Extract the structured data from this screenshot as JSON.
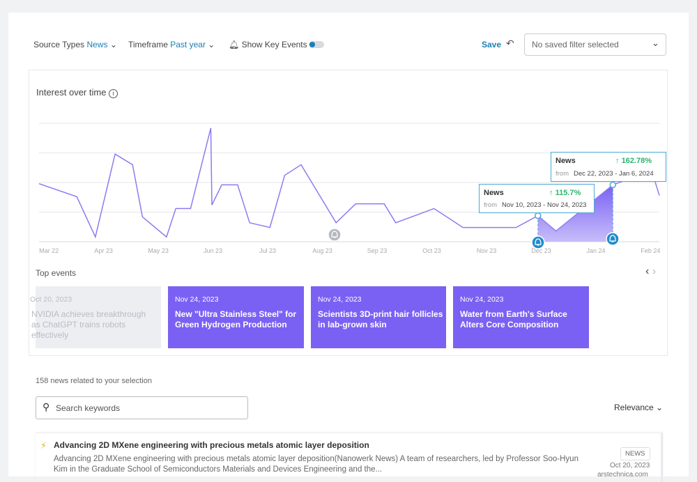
{
  "filters": {
    "source_label": "Source Types",
    "source_value": "News",
    "timeframe_label": "Timeframe",
    "timeframe_value": "Past year",
    "key_events": "Show Key Events",
    "save": "Save",
    "saved_filter": "No saved filter selected"
  },
  "chart_data": {
    "type": "line",
    "title": "Interest over time",
    "x": [
      -0.18,
      0.51,
      0.85,
      1.21,
      1.53,
      1.71,
      2.15,
      2.32,
      2.59,
      2.96,
      2.98,
      3.16,
      3.45,
      3.67,
      4.04,
      4.31,
      4.61,
      5.25,
      5.61,
      6.13,
      6.34,
      7.04,
      7.57,
      8.54,
      8.94,
      9.27,
      10.31,
      11.02,
      11.16
    ],
    "series": [
      {
        "name": "News",
        "color": "#8c7cf0",
        "values": [
          49,
          38,
          4,
          74,
          65,
          21,
          4,
          28,
          28,
          96,
          31,
          48,
          48,
          16,
          12,
          56,
          65,
          16,
          32,
          32,
          16,
          28,
          12,
          12,
          22,
          9,
          48,
          60,
          39
        ]
      }
    ],
    "xlim": [
      -0.18,
      11.16
    ],
    "xticks": [
      {
        "value": 0,
        "label": "Mar 22"
      },
      {
        "value": 1,
        "label": "Apr 23"
      },
      {
        "value": 2,
        "label": "May 23"
      },
      {
        "value": 3,
        "label": "Jun 23"
      },
      {
        "value": 4,
        "label": "Jul 23"
      },
      {
        "value": 5,
        "label": "Aug 23"
      },
      {
        "value": 6,
        "label": "Sep 23"
      },
      {
        "value": 7,
        "label": "Oct 23"
      },
      {
        "value": 8,
        "label": "Nov 23"
      },
      {
        "value": 9,
        "label": "Dec 23"
      },
      {
        "value": 10,
        "label": "Jan 24"
      },
      {
        "value": 11,
        "label": "Feb 24"
      }
    ],
    "ylim": [
      0,
      100
    ],
    "yticks": [
      0,
      25,
      50,
      75,
      100
    ],
    "grid": true,
    "annotations": [
      {
        "series": "News",
        "change": "115.7%",
        "from": "from",
        "range": "Nov 10, 2023 - Nov 24, 2023"
      },
      {
        "series": "News",
        "change": "162.78%",
        "from": "from",
        "range": "Dec 22, 2023 - Jan 6, 2024"
      }
    ]
  },
  "top_events": {
    "title": "Top events",
    "cards": [
      {
        "date": "Oct 20, 2023",
        "title": "NVIDIA achieves breakthrough as ChatGPT trains robots effectively"
      },
      {
        "date": "Nov 24, 2023",
        "title": "New \"Ultra Stainless Steel\" for Green Hydrogen Production"
      },
      {
        "date": "Nov 24, 2023",
        "title": "Scientists 3D-print hair follicles in lab-grown skin"
      },
      {
        "date": "Nov 24, 2023",
        "title": "Water from Earth's Surface Alters Core Composition"
      }
    ]
  },
  "results": {
    "count_text": "158 news related to your selection",
    "search_placeholder": "Search keywords",
    "sort": "Relevance",
    "items": [
      {
        "title": "Advancing 2D MXene engineering with precious metals atomic layer deposition",
        "snippet": "Advancing 2D MXene engineering with precious metals atomic layer deposition(Nanowerk News) A team of researchers, led by Professor Soo-Hyun Kim in the Graduate School of Semiconductors Materials and Devices Engineering and the...",
        "tag": "NEWS",
        "date": "Oct 20, 2023",
        "source": "arstechnica.com"
      }
    ]
  }
}
